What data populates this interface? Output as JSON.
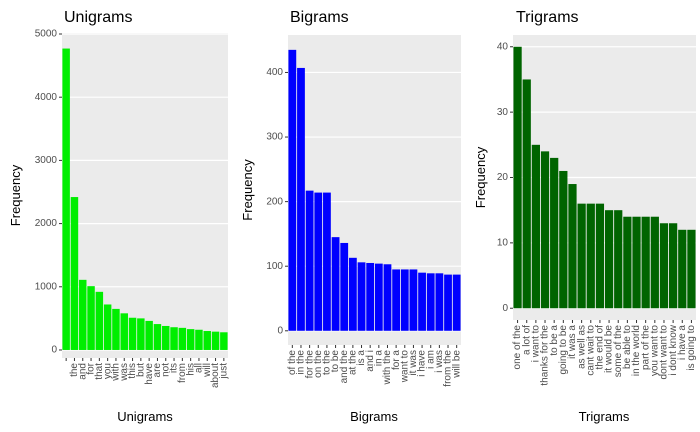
{
  "chart_data": [
    {
      "type": "bar",
      "title": "Unigrams",
      "xlabel": "Unigrams",
      "ylabel": "Frequency",
      "color": "#00ee00",
      "grid": true,
      "categories": [
        null,
        "the",
        "and",
        "for",
        "that",
        "you",
        "with",
        "was",
        "this",
        "but",
        "have",
        "are",
        "not",
        "its",
        "from",
        "his",
        "all",
        "will",
        "about",
        "just"
      ],
      "values": [
        4770,
        2420,
        1110,
        1010,
        920,
        720,
        650,
        580,
        510,
        500,
        460,
        410,
        380,
        360,
        350,
        330,
        320,
        300,
        290,
        280
      ],
      "ylim": [
        -127,
        5016
      ],
      "yticks": [
        0,
        1000,
        2000,
        3000,
        4000,
        5000
      ]
    },
    {
      "type": "bar",
      "title": "Bigrams",
      "xlabel": "Bigrams",
      "ylabel": "Frequency",
      "color": "#0000ff",
      "grid": true,
      "categories": [
        "of the",
        "in the",
        "for the",
        "on the",
        "to the",
        "to be",
        "and the",
        "at the",
        "is a",
        "and i",
        "in a",
        "with the",
        "for a",
        "want to",
        "it was",
        "i have",
        "i am",
        "i was",
        "from the",
        "will be"
      ],
      "values": [
        435,
        407,
        217,
        214,
        214,
        145,
        136,
        113,
        106,
        105,
        104,
        103,
        95,
        95,
        95,
        90,
        89,
        89,
        87,
        87
      ],
      "ylim": [
        -22,
        458
      ],
      "yticks": [
        0,
        100,
        200,
        300,
        400
      ]
    },
    {
      "type": "bar",
      "title": "Trigrams",
      "xlabel": "Trigrams",
      "ylabel": "Frequency",
      "color": "#006400",
      "grid": true,
      "categories": [
        "one of the",
        "a lot of",
        "i want to",
        "thanks for the",
        "to be a",
        "going to be",
        "it was a",
        "as well as",
        "cant wait to",
        "the end of",
        "it would be",
        "some of the",
        "be able to",
        "in the world",
        "part of the",
        "you want to",
        "dont want to",
        "i dont know",
        "i have a",
        "is going to"
      ],
      "values": [
        40,
        35,
        25,
        24,
        23,
        21,
        19,
        16,
        16,
        16,
        15,
        15,
        14,
        14,
        14,
        14,
        13,
        13,
        12,
        12
      ],
      "ylim": [
        -1.8,
        41.8
      ],
      "yticks": [
        0,
        10,
        20,
        30,
        40
      ]
    }
  ]
}
